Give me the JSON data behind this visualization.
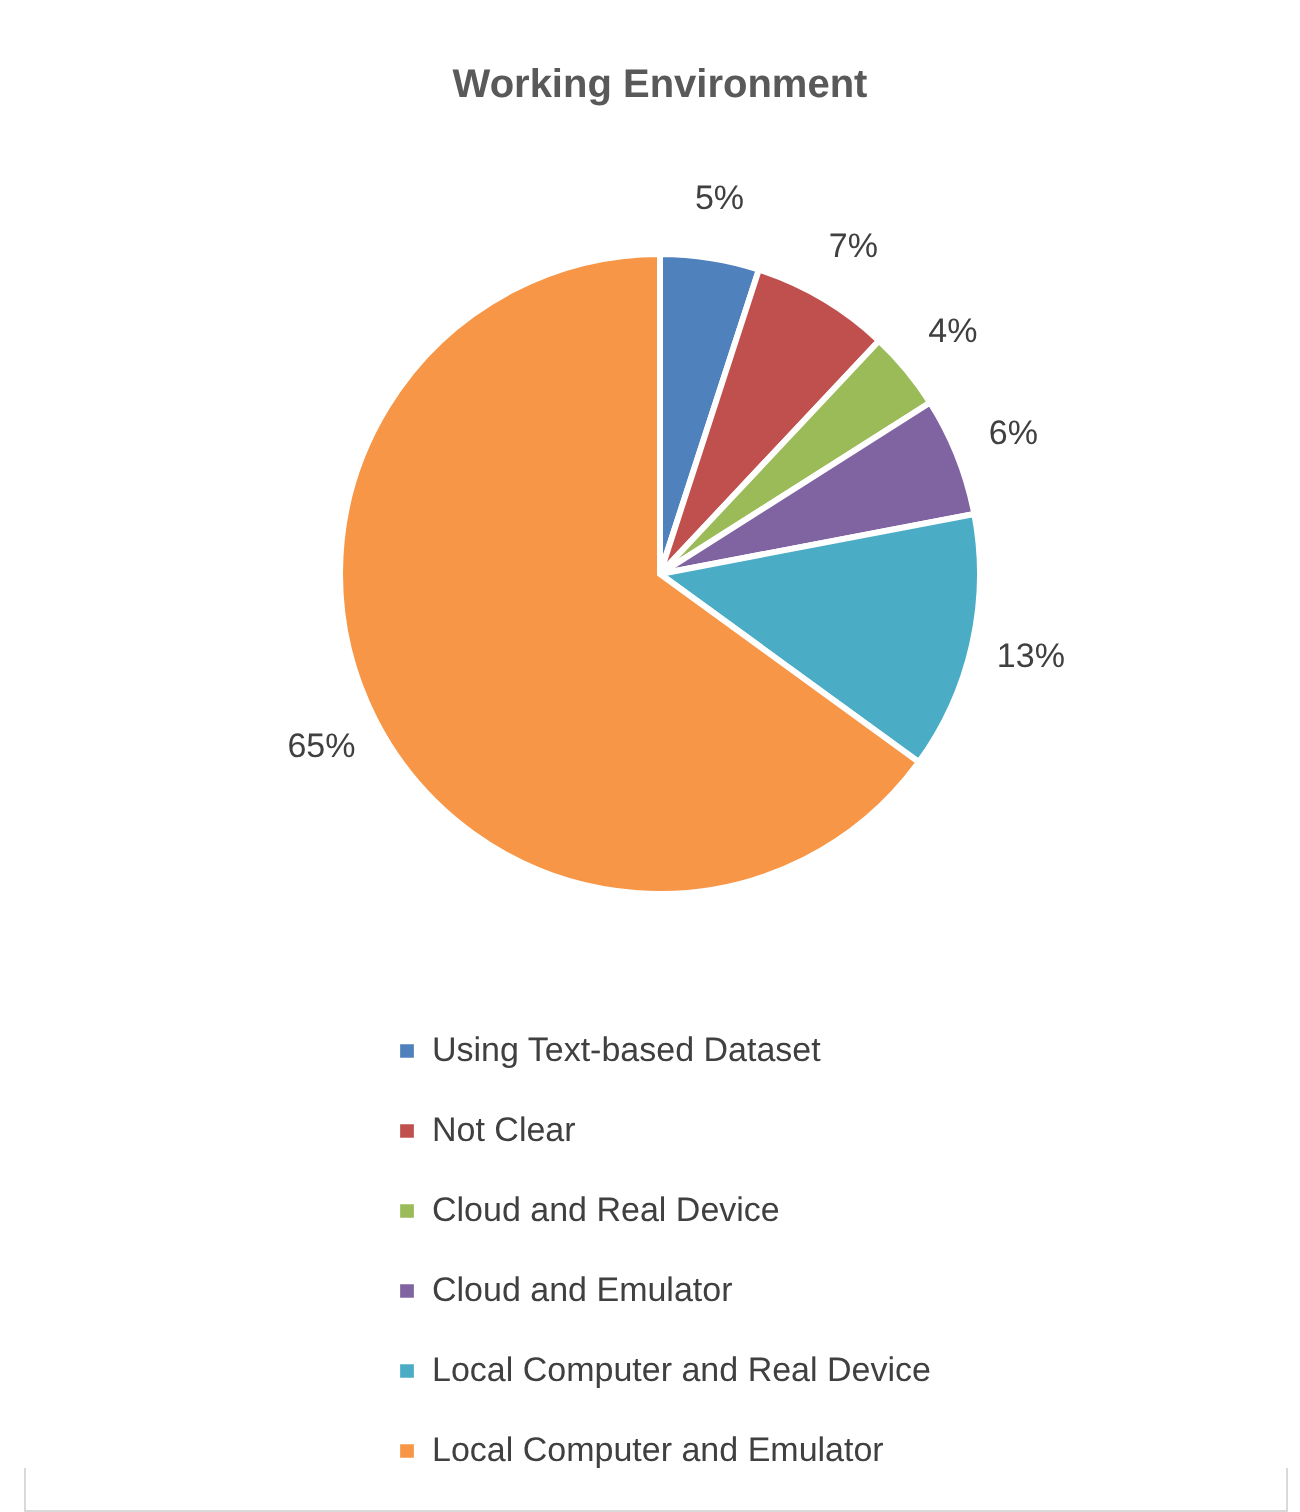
{
  "chart_data": {
    "type": "pie",
    "title": "Working Environment",
    "categories": [
      "Using Text-based Dataset",
      "Not Clear",
      "Cloud and Real Device",
      "Cloud and Emulator",
      "Local Computer and Real Device",
      "Local Computer and Emulator"
    ],
    "values": [
      5,
      7,
      4,
      6,
      13,
      65
    ],
    "value_labels": [
      "5%",
      "7%",
      "4%",
      "6%",
      "13%",
      "65%"
    ],
    "colors": [
      "#4f81bd",
      "#c0504d",
      "#9bbb59",
      "#8064a2",
      "#4bacc6",
      "#f79646"
    ],
    "legend": "bottom"
  }
}
